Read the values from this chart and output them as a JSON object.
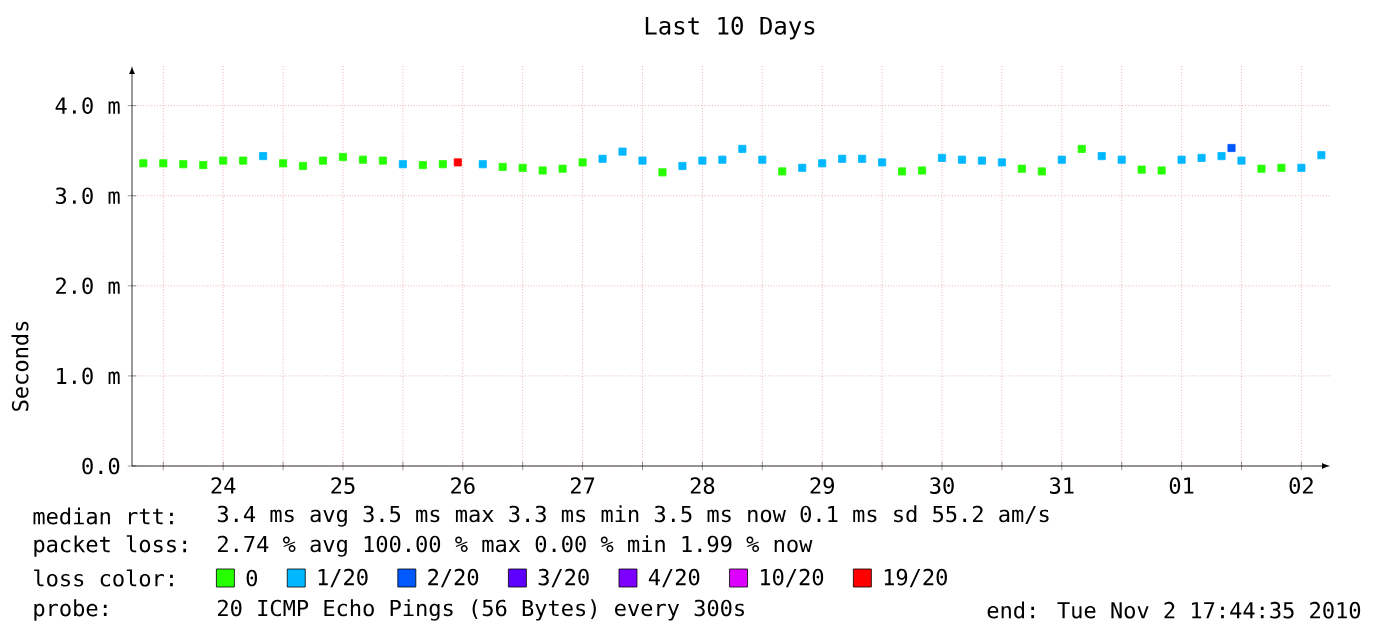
{
  "chart_data": {
    "type": "scatter",
    "title": "Last 10 Days",
    "ylabel": "Seconds",
    "legend_title": "loss color:",
    "legend": "bottom",
    "marker": "square",
    "grid": true,
    "xlim": [
      "2010-10-23T17:44",
      "2010-11-02T17:44"
    ],
    "xticks": [
      {
        "value": "2010-10-24T00:00",
        "label": null
      },
      {
        "value": "2010-10-24T12:00",
        "label": "24"
      },
      {
        "value": "2010-10-25T00:00",
        "label": null
      },
      {
        "value": "2010-10-25T12:00",
        "label": "25"
      },
      {
        "value": "2010-10-26T00:00",
        "label": null
      },
      {
        "value": "2010-10-26T12:00",
        "label": "26"
      },
      {
        "value": "2010-10-27T00:00",
        "label": null
      },
      {
        "value": "2010-10-27T12:00",
        "label": "27"
      },
      {
        "value": "2010-10-28T00:00",
        "label": null
      },
      {
        "value": "2010-10-28T12:00",
        "label": "28"
      },
      {
        "value": "2010-10-29T00:00",
        "label": null
      },
      {
        "value": "2010-10-29T12:00",
        "label": "29"
      },
      {
        "value": "2010-10-30T00:00",
        "label": null
      },
      {
        "value": "2010-10-30T12:00",
        "label": "30"
      },
      {
        "value": "2010-10-31T00:00",
        "label": null
      },
      {
        "value": "2010-10-31T12:00",
        "label": "31"
      },
      {
        "value": "2010-11-01T00:00",
        "label": null
      },
      {
        "value": "2010-11-01T12:00",
        "label": "01"
      },
      {
        "value": "2010-11-02T00:00",
        "label": null
      },
      {
        "value": "2010-11-02T12:00",
        "label": "02"
      }
    ],
    "ylim": [
      0,
      4.44
    ],
    "yticks": [
      {
        "value": 0,
        "label": "0.0"
      },
      {
        "value": 1,
        "label": "1.0 m"
      },
      {
        "value": 2,
        "label": "2.0 m"
      },
      {
        "value": 3,
        "label": "3.0 m"
      },
      {
        "value": 4,
        "label": "4.0 m"
      }
    ],
    "series": [
      {
        "name": "0",
        "color": "#26ff00",
        "x": [
          "2010-10-23T20:00",
          "2010-10-24T00:00",
          "2010-10-24T04:00",
          "2010-10-24T08:00",
          "2010-10-24T12:00",
          "2010-10-24T16:00",
          "2010-10-25T00:00",
          "2010-10-25T04:00",
          "2010-10-25T08:00",
          "2010-10-25T12:00",
          "2010-10-25T16:00",
          "2010-10-25T20:00",
          "2010-10-26T04:00",
          "2010-10-26T08:00",
          "2010-10-26T20:00",
          "2010-10-27T00:00",
          "2010-10-27T04:00",
          "2010-10-27T08:00",
          "2010-10-27T12:00",
          "2010-10-28T04:00",
          "2010-10-29T04:00",
          "2010-10-30T04:00",
          "2010-10-30T08:00",
          "2010-10-31T04:00",
          "2010-10-31T08:00",
          "2010-10-31T16:00",
          "2010-11-01T04:00",
          "2010-11-01T08:00",
          "2010-11-02T04:00",
          "2010-11-02T08:00"
        ],
        "values": [
          3.36,
          3.36,
          3.35,
          3.34,
          3.39,
          3.39,
          3.36,
          3.33,
          3.39,
          3.43,
          3.4,
          3.39,
          3.34,
          3.35,
          3.32,
          3.31,
          3.28,
          3.3,
          3.37,
          3.26,
          3.27,
          3.27,
          3.28,
          3.3,
          3.27,
          3.52,
          3.29,
          3.28,
          3.3,
          3.31
        ]
      },
      {
        "name": "1/20",
        "color": "#00b8ff",
        "x": [
          "2010-10-24T20:00",
          "2010-10-26T00:00",
          "2010-10-26T16:00",
          "2010-10-27T16:00",
          "2010-10-27T20:00",
          "2010-10-28T00:00",
          "2010-10-28T08:00",
          "2010-10-28T12:00",
          "2010-10-28T16:00",
          "2010-10-28T20:00",
          "2010-10-29T00:00",
          "2010-10-29T08:00",
          "2010-10-29T12:00",
          "2010-10-29T16:00",
          "2010-10-29T20:00",
          "2010-10-30T00:00",
          "2010-10-30T12:00",
          "2010-10-30T16:00",
          "2010-10-30T20:00",
          "2010-10-31T00:00",
          "2010-10-31T12:00",
          "2010-10-31T20:00",
          "2010-11-01T00:00",
          "2010-11-01T12:00",
          "2010-11-01T16:00",
          "2010-11-01T20:00",
          "2010-11-02T00:00",
          "2010-11-02T12:00",
          "2010-11-02T16:00"
        ],
        "values": [
          3.44,
          3.35,
          3.35,
          3.41,
          3.49,
          3.39,
          3.33,
          3.39,
          3.4,
          3.52,
          3.4,
          3.31,
          3.36,
          3.41,
          3.41,
          3.37,
          3.42,
          3.4,
          3.39,
          3.37,
          3.4,
          3.44,
          3.4,
          3.4,
          3.42,
          3.44,
          3.39,
          3.31,
          3.45
        ]
      },
      {
        "name": "2/20",
        "color": "#0059ff",
        "x": [
          "2010-11-01T22:00"
        ],
        "values": [
          3.53
        ]
      },
      {
        "name": "3/20",
        "color": "#5e00ff"
      },
      {
        "name": "4/20",
        "color": "#7e00ff"
      },
      {
        "name": "10/20",
        "color": "#dd00ff"
      },
      {
        "name": "19/20",
        "color": "#ff0000",
        "x": [
          "2010-10-26T11:00"
        ],
        "values": [
          3.37
        ]
      }
    ],
    "annotations": [
      "median rtt:",
      "3.4 ms avg  3.5 ms max  3.3 ms min  3.5 ms now  0.1 ms sd  55.2   am/s",
      "packet loss:",
      "2.74 % avg  100.00 % max  0.00 % min  1.99 % now",
      "probe:",
      "20 ICMP Echo Pings (56 Bytes) every 300s",
      "end: Tue Nov  2 17:44:35 2010"
    ]
  }
}
